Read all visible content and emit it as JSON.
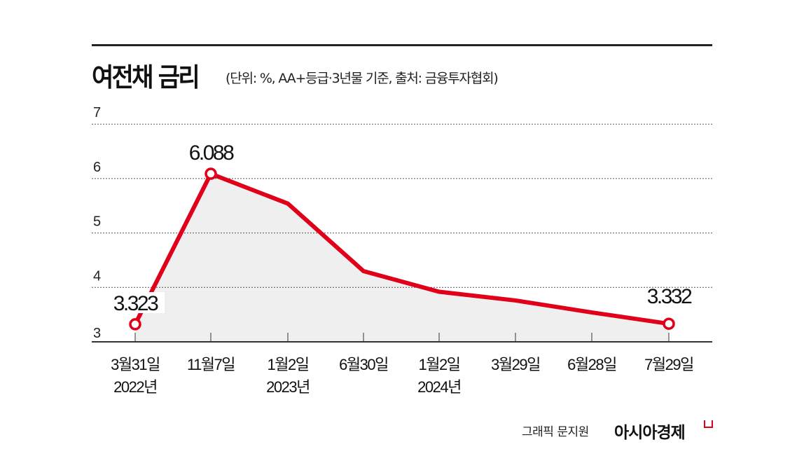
{
  "header": {
    "title": "여전채 금리",
    "subtitle": "(단위: %, AA+등급·3년물 기준, 출처: 금융투자협회)"
  },
  "footer": {
    "credit": "그래픽 문지원",
    "brand": "아시아경제"
  },
  "colors": {
    "line": "#e10019",
    "area": "#efefef",
    "grid": "#555555",
    "axis": "#333333"
  },
  "chart_data": {
    "type": "area",
    "title": "여전채 금리",
    "subtitle": "(단위: %, AA+등급·3년물 기준, 출처: 금융투자협회)",
    "xlabel": "",
    "ylabel": "%",
    "categories": [
      "3월31일\n2022년",
      "11월7일",
      "1월2일\n2023년",
      "6월30일",
      "1월2일\n2024년",
      "3월29일",
      "6월28일",
      "7월29일"
    ],
    "x_labels_line1": [
      "3월31일",
      "11월7일",
      "1월2일",
      "6월30일",
      "1월2일",
      "3월29일",
      "6월28일",
      "7월29일"
    ],
    "x_labels_line2": [
      "2022년",
      "",
      "2023년",
      "",
      "2024년",
      "",
      "",
      ""
    ],
    "series": [
      {
        "name": "여전채 금리",
        "values": [
          3.323,
          6.088,
          5.54,
          4.3,
          3.92,
          3.76,
          3.54,
          3.332
        ]
      }
    ],
    "annotations": [
      {
        "index": 0,
        "label": "3.323"
      },
      {
        "index": 1,
        "label": "6.088"
      },
      {
        "index": 7,
        "label": "3.332"
      }
    ],
    "yticks": [
      3,
      4,
      5,
      6,
      7
    ],
    "ylim": [
      3,
      7
    ],
    "grid": true,
    "legend": "none"
  }
}
